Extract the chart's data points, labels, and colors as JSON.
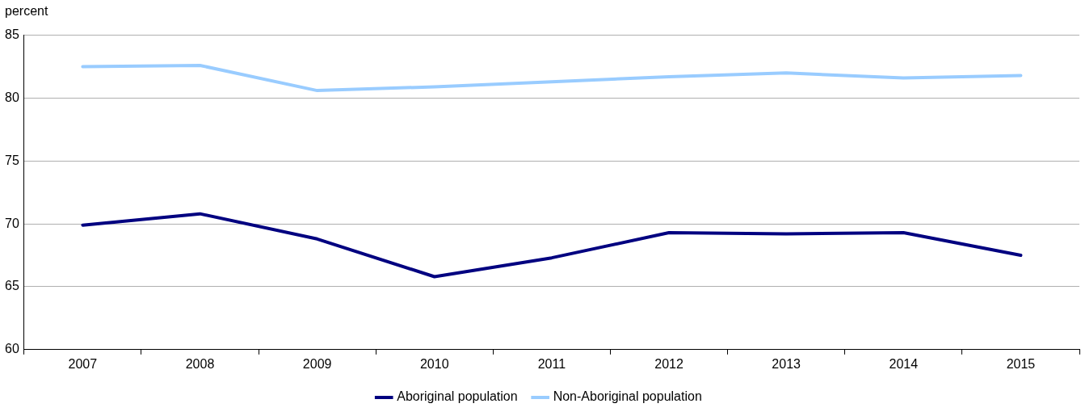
{
  "chart_data": {
    "type": "line",
    "ylabel": "percent",
    "categories": [
      "2007",
      "2008",
      "2009",
      "2010",
      "2011",
      "2012",
      "2013",
      "2014",
      "2015"
    ],
    "series": [
      {
        "name": "Aboriginal population",
        "color": "#000080",
        "values": [
          69.9,
          70.8,
          68.8,
          65.8,
          67.3,
          69.3,
          69.2,
          69.3,
          67.5
        ]
      },
      {
        "name": "Non-Aboriginal population",
        "color": "#99ccff",
        "values": [
          82.5,
          82.6,
          80.6,
          80.9,
          81.3,
          81.7,
          82.0,
          81.6,
          81.8
        ]
      }
    ],
    "ylim": [
      60,
      85
    ],
    "yticks": [
      60,
      65,
      70,
      75,
      80,
      85
    ],
    "grid": "y",
    "legend": "bottom",
    "marker": "none",
    "line_style": "solid"
  }
}
